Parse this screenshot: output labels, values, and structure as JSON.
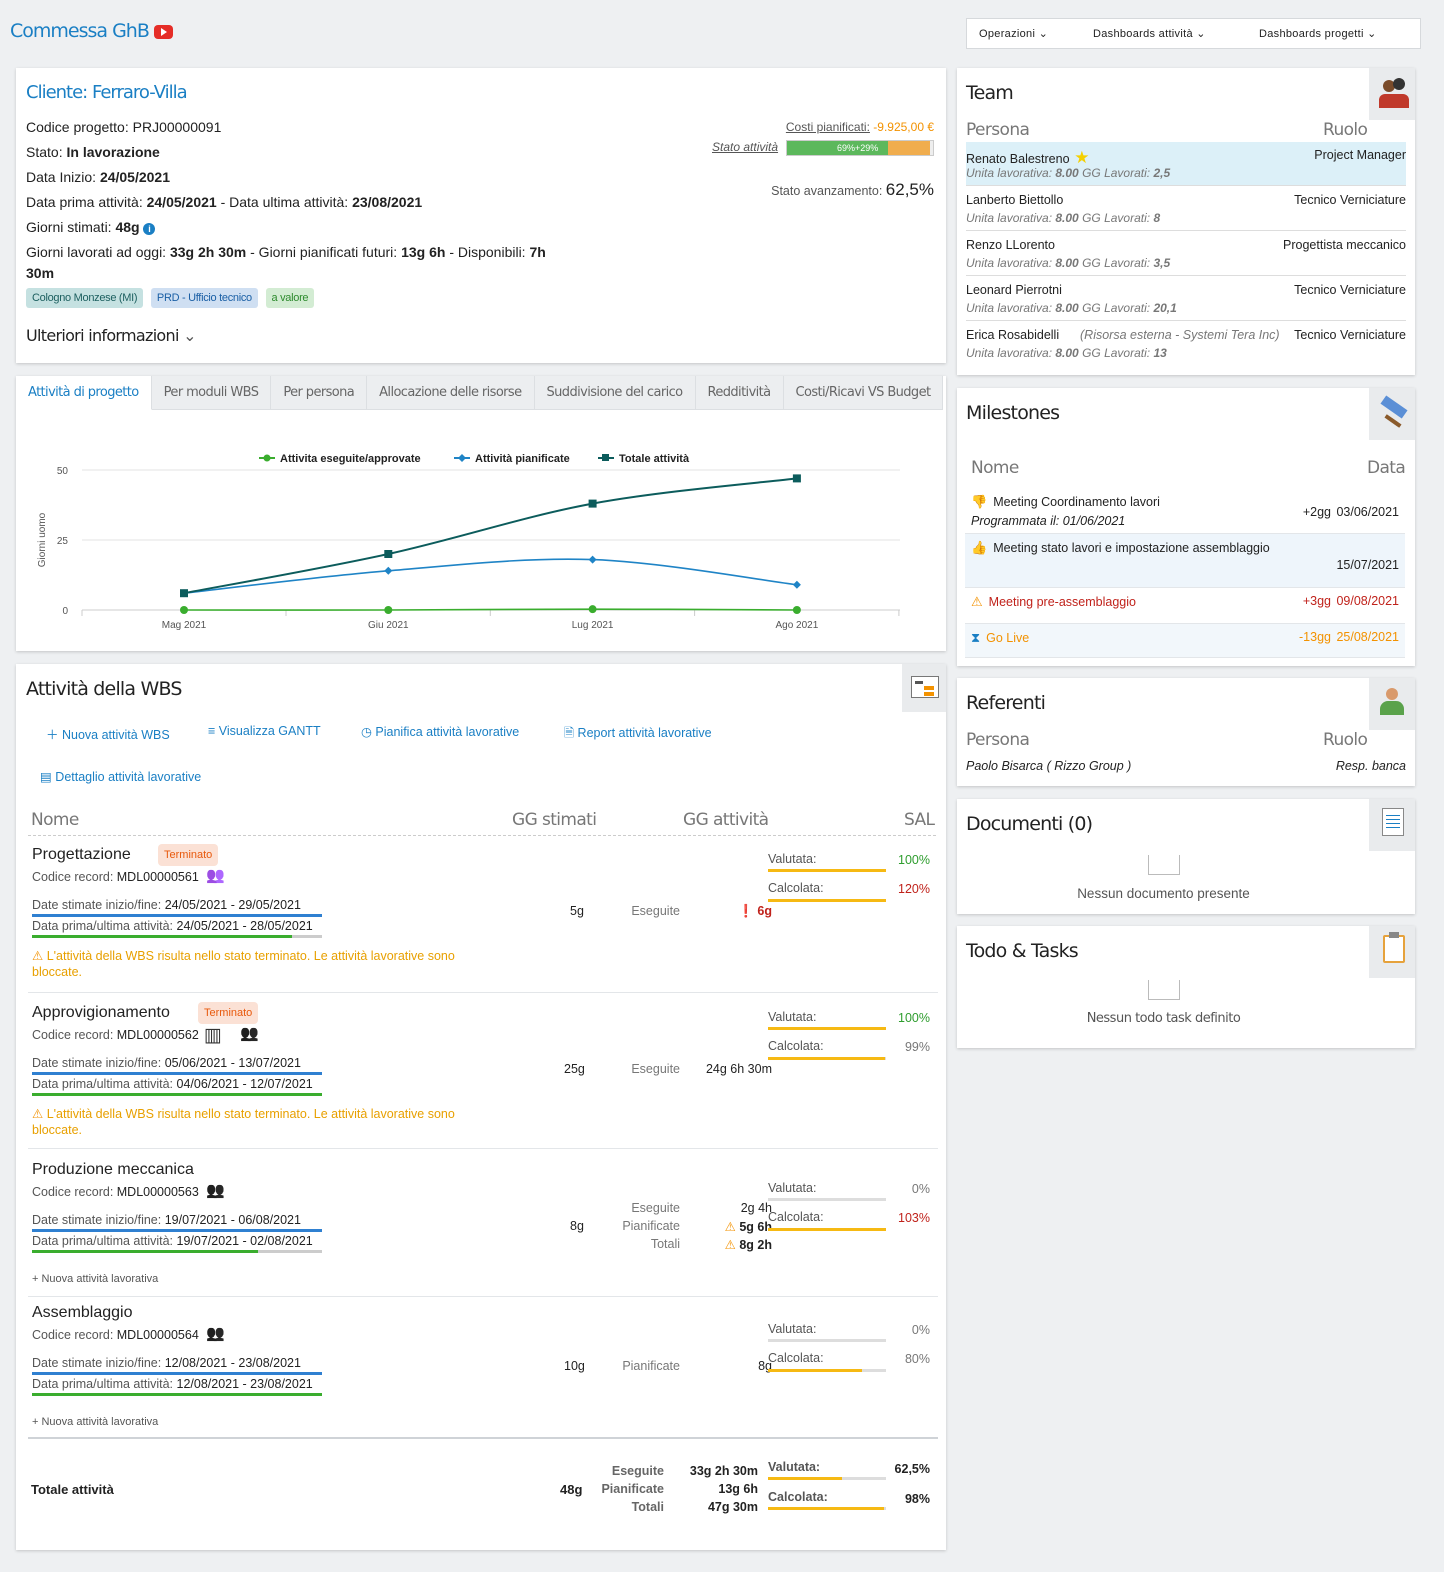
{
  "app": {
    "title": "Commessa GhB",
    "menus": [
      "Operazioni",
      "Dashboards attività",
      "Dashboards progetti"
    ]
  },
  "project": {
    "cliente": "Cliente: Ferraro-Villa",
    "codice_label": "Codice progetto:",
    "codice": "PRJ00000091",
    "stato_label": "Stato:",
    "stato": "In lavorazione",
    "data_inizio_label": "Data Inizio:",
    "data_inizio": "24/05/2021",
    "prima_label": "Data prima attività:",
    "prima": "24/05/2021",
    "ultima_label": "- Data ultima attività:",
    "ultima": "23/08/2021",
    "giorni_stimati_label": "Giorni stimati:",
    "giorni_stimati": "48g",
    "lavorati_label": "Giorni lavorati ad oggi:",
    "lavorati": "33g 2h 30m",
    "futuri_label": "- Giorni pianificati futuri:",
    "futuri": "13g 6h",
    "disponibili_label": "- Disponibili:",
    "disponibili_a": "7h",
    "disponibili_b": "30m",
    "tags": [
      "Cologno Monzese (MI)",
      "PRD - Ufficio tecnico",
      "a valore"
    ],
    "ulteriori": "Ulteriori informazioni",
    "costi_label": "Costi pianificati:",
    "costi": "-9.925,00 €",
    "stato_attivita_label": "Stato attività",
    "stato_attivita_bar": "69%+29%",
    "stato_attivita_green": 69,
    "stato_attivita_orange": 29,
    "avanzamento_label": "Stato avanzamento:",
    "avanzamento": "62,5%"
  },
  "tabs": [
    "Attività di progetto",
    "Per moduli WBS",
    "Per persona",
    "Allocazione delle risorse",
    "Suddivisione del carico",
    "Redditività",
    "Costi/Ricavi VS Budget"
  ],
  "chart_data": {
    "type": "line",
    "categories": [
      "Mag 2021",
      "Giu 2021",
      "Lug 2021",
      "Ago 2021"
    ],
    "ylabel": "Giorni uomo",
    "ylim": [
      0,
      50
    ],
    "yticks": [
      "0",
      "25",
      "50"
    ],
    "legend": "top",
    "series": [
      {
        "name": "Attivita eseguite/approvate",
        "color": "#3aad2e",
        "values": [
          0,
          0,
          0.3,
          0
        ]
      },
      {
        "name": "Attività pianificate",
        "color": "#1f84c6",
        "values": [
          6,
          14,
          18,
          9
        ]
      },
      {
        "name": "Totale attività",
        "color": "#0c5c5c",
        "values": [
          6,
          20,
          38,
          47
        ]
      }
    ]
  },
  "wbs": {
    "title": "Attività della WBS",
    "actions": [
      "Nuova attività WBS",
      "Visualizza GANTT",
      "Pianifica attività lavorative",
      "Report attività lavorative",
      "Dettaglio attività lavorative"
    ],
    "headers": {
      "nome": "Nome",
      "stimati": "GG stimati",
      "attivita": "GG attività",
      "sal": "SAL"
    },
    "codice_label": "Codice record:",
    "date_stimate_label": "Date stimate inizio/fine:",
    "date_prima_label": "Data prima/ultima attività:",
    "valutata_label": "Valutata:",
    "calcolata_label": "Calcolata:",
    "warn_text": "L'attività della WBS risulta nello stato terminato. Le attività lavorative sono bloccate.",
    "nuova_lavorativa": "Nuova attività lavorativa",
    "rows": [
      {
        "name": "Progettazione",
        "badge": "Terminato",
        "code": "MDL00000561",
        "stimate": "24/05/2021 - 29/05/2021",
        "prima": "24/05/2021 - 28/05/2021",
        "gg": "5g",
        "type_labels": [
          "Eseguite"
        ],
        "type_values": [
          "6g"
        ],
        "valutata": "100%",
        "calcolata": "120%",
        "val_fill": 100,
        "calc_fill": 100
      },
      {
        "name": "Approvigionamento",
        "badge": "Terminato",
        "code": "MDL00000562",
        "stimate": "05/06/2021 - 13/07/2021",
        "prima": "04/06/2021 - 12/07/2021",
        "gg": "25g",
        "type_labels": [
          "Eseguite"
        ],
        "type_values": [
          "24g 6h 30m"
        ],
        "valutata": "100%",
        "calcolata": "99%",
        "val_fill": 100,
        "calc_fill": 99
      },
      {
        "name": "Produzione meccanica",
        "badge": "",
        "code": "MDL00000563",
        "stimate": "19/07/2021 - 06/08/2021",
        "prima": "19/07/2021 - 02/08/2021",
        "gg": "8g",
        "type_labels": [
          "Eseguite",
          "Pianificate",
          "Totali"
        ],
        "type_values": [
          "2g 4h",
          "5g 6h",
          "8g 2h"
        ],
        "valutata": "0%",
        "calcolata": "103%",
        "val_fill": 0,
        "calc_fill": 100
      },
      {
        "name": "Assemblaggio",
        "badge": "",
        "code": "MDL00000564",
        "stimate": "12/08/2021 - 23/08/2021",
        "prima": "12/08/2021 - 23/08/2021",
        "gg": "10g",
        "type_labels": [
          "Pianificate"
        ],
        "type_values": [
          "8g"
        ],
        "valutata": "0%",
        "calcolata": "80%",
        "val_fill": 0,
        "calc_fill": 80
      }
    ],
    "total": {
      "label": "Totale attività",
      "gg": "48g",
      "type_labels": [
        "Eseguite",
        "Pianificate",
        "Totali"
      ],
      "type_values": [
        "33g 2h 30m",
        "13g 6h",
        "47g 30m"
      ],
      "valutata": "62,5%",
      "calcolata": "98%",
      "val_fill": 62.5,
      "calc_fill": 98
    }
  },
  "team": {
    "title": "Team",
    "persona": "Persona",
    "ruolo": "Ruolo",
    "unit_prefix": "Unita lavorativa:",
    "gg_prefix": "GG Lavorati:",
    "members": [
      {
        "name": "Renato Balestreno",
        "unit": "8.00",
        "gg": "2,5",
        "role": "Project Manager",
        "extra": ""
      },
      {
        "name": "Lanberto Biettollo",
        "unit": "8.00",
        "gg": "8",
        "role": "Tecnico Verniciature",
        "extra": ""
      },
      {
        "name": "Renzo LLorento",
        "unit": "8.00",
        "gg": "3,5",
        "role": "Progettista meccanico",
        "extra": ""
      },
      {
        "name": "Leonard Pierrotni",
        "unit": "8.00",
        "gg": "20,1",
        "role": "Tecnico Verniciature",
        "extra": ""
      },
      {
        "name": "Erica Rosabidelli",
        "unit": "8.00",
        "gg": "13",
        "role": "Tecnico Verniciature",
        "extra": "(Risorsa esterna - Systemi Tera Inc)"
      }
    ]
  },
  "milestones": {
    "title": "Milestones",
    "nome": "Nome",
    "data": "Data",
    "items": [
      {
        "name": "Meeting Coordinamento lavori",
        "sub": "Programmata il: 01/06/2021",
        "delta": "+2gg",
        "date": "03/06/2021",
        "icon": "thumbs-down"
      },
      {
        "name": "Meeting stato lavori e impostazione assemblaggio",
        "sub": "",
        "delta": "",
        "date": "15/07/2021",
        "icon": "thumbs-up"
      },
      {
        "name": "Meeting pre-assemblaggio",
        "sub": "",
        "delta": "+3gg",
        "date": "09/08/2021",
        "icon": "warning"
      },
      {
        "name": "Go Live",
        "sub": "",
        "delta": "-13gg",
        "date": "25/08/2021",
        "icon": "hourglass"
      }
    ]
  },
  "referenti": {
    "title": "Referenti",
    "persona": "Persona",
    "ruolo": "Ruolo",
    "name": "Paolo Bisarca ( Rizzo Group )",
    "role": "Resp. banca"
  },
  "documenti": {
    "title": "Documenti (0)",
    "empty": "Nessun documento presente"
  },
  "todo": {
    "title": "Todo & Tasks",
    "empty": "Nessun todo task definito"
  }
}
